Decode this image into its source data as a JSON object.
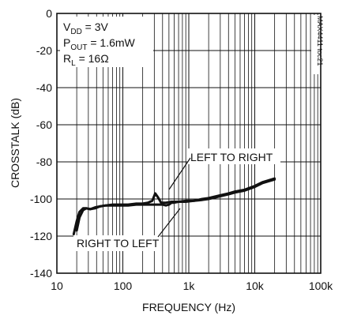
{
  "chart_data": {
    "type": "line",
    "title": "",
    "xlabel": "FREQUENCY (Hz)",
    "ylabel": "CROSSTALK (dB)",
    "x_scale": "log",
    "xlim": [
      10,
      100000
    ],
    "ylim": [
      -140,
      0
    ],
    "x_ticks": [
      10,
      100,
      1000,
      10000,
      100000
    ],
    "x_tick_labels": [
      "10",
      "100",
      "1k",
      "10k",
      "100k"
    ],
    "y_ticks": [
      0,
      -20,
      -40,
      -60,
      -80,
      -100,
      -120,
      -140
    ],
    "y_tick_labels": [
      "0",
      "-20",
      "-40",
      "-60",
      "-80",
      "-100",
      "-120",
      "-140"
    ],
    "grid": true,
    "conditions": [
      {
        "main": "V",
        "sub": "DD",
        "rest": " = 3V"
      },
      {
        "main": "P",
        "sub": "OUT",
        "rest": " = 1.6mW"
      },
      {
        "main": "R",
        "sub": "L",
        "rest": " = 16Ω"
      }
    ],
    "part_number": "MAX4411 toc21",
    "annotations": [
      "LEFT TO RIGHT",
      "RIGHT TO LEFT"
    ],
    "series": [
      {
        "x": [
          20,
          22,
          25,
          28,
          32,
          38,
          45,
          55,
          70,
          90,
          120,
          160,
          200,
          240,
          280,
          310,
          340,
          380,
          450,
          550,
          700,
          900,
          1200,
          1600,
          2000,
          3000,
          4000,
          5000,
          7000,
          10000,
          13000,
          16000,
          20000
        ],
        "y": [
          -117,
          -110,
          -106,
          -105,
          -105.5,
          -105,
          -104,
          -103.5,
          -103,
          -103,
          -103,
          -102.5,
          -102.5,
          -102,
          -101,
          -97,
          -99,
          -102,
          -102,
          -101.5,
          -101.5,
          -101,
          -101,
          -100,
          -99.5,
          -98,
          -97,
          -96,
          -95,
          -93,
          -91,
          -90,
          -89
        ]
      },
      {
        "x": [
          18,
          20,
          22,
          25,
          28,
          32,
          38,
          45,
          55,
          70,
          90,
          120,
          160,
          200,
          250,
          300,
          350,
          400,
          450,
          500,
          550,
          600,
          700,
          900,
          1200,
          1600,
          2000,
          3000,
          4000,
          5000,
          7000,
          10000,
          13000,
          16000,
          20000
        ],
        "y": [
          -119,
          -112,
          -107,
          -105,
          -105,
          -105.5,
          -104.5,
          -104,
          -103.5,
          -103.5,
          -103.5,
          -103.5,
          -103,
          -103,
          -103,
          -103,
          -103,
          -103,
          -103.5,
          -103,
          -102,
          -102,
          -101.5,
          -101.5,
          -101,
          -100.5,
          -100,
          -98.5,
          -97.5,
          -96.5,
          -95.5,
          -93.5,
          -91.5,
          -90.5,
          -89.5
        ]
      }
    ]
  }
}
